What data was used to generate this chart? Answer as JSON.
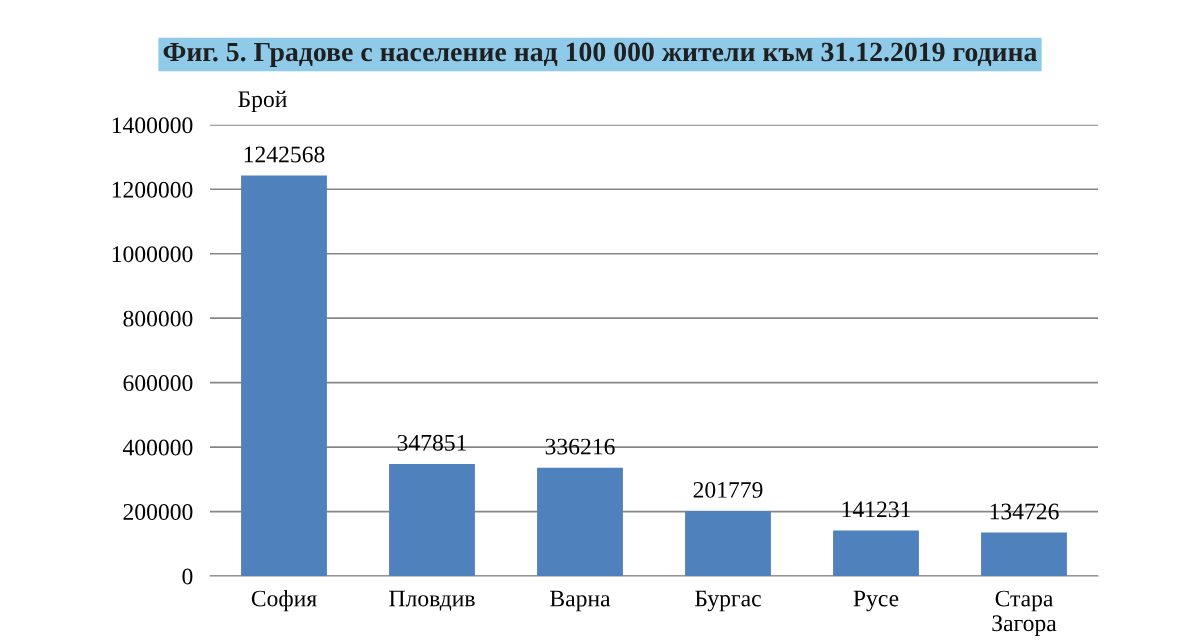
{
  "chart_data": {
    "type": "bar",
    "title": "Фиг. 5. Градове с население над 100 000 жители към 31.12.2019 година",
    "ylabel": "Брой",
    "categories": [
      "София",
      "Пловдив",
      "Варна",
      "Бургас",
      "Русе",
      "Стара Загора"
    ],
    "values": [
      1242568,
      347851,
      336216,
      201779,
      141231,
      134726
    ],
    "color": "#4f81bd",
    "ylim": [
      0,
      1400000
    ],
    "yticks": [
      0,
      200000,
      400000,
      600000,
      800000,
      1000000,
      1200000,
      1400000
    ],
    "grid": "y",
    "data_labels": true
  }
}
